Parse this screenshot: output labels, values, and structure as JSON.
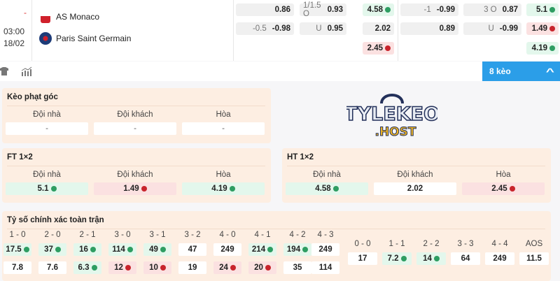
{
  "match": {
    "status": "-",
    "time": "03:00",
    "date": "18/02",
    "home": "AS Monaco",
    "away": "Paris Saint Germain"
  },
  "odds": {
    "colA": [
      {
        "label": "",
        "value": "0.86"
      },
      {
        "label": "-0.5",
        "value": "-0.98"
      }
    ],
    "colB": [
      {
        "label": "1/1.5 O",
        "value": "0.93"
      },
      {
        "label": "U",
        "value": "0.95"
      }
    ],
    "colC": [
      {
        "value": "4.58",
        "trend": "up"
      },
      {
        "value": "2.02",
        "trend": null
      },
      {
        "value": "2.45",
        "trend": "down"
      }
    ],
    "colD": [
      {
        "label": "-1",
        "value": "-0.99"
      },
      {
        "label": "",
        "value": "0.89"
      }
    ],
    "colE": [
      {
        "label": "3 O",
        "value": "0.87"
      },
      {
        "label": "U",
        "value": "-0.99"
      }
    ],
    "colF": [
      {
        "value": "5.1",
        "trend": "up"
      },
      {
        "value": "1.49",
        "trend": "down"
      },
      {
        "value": "4.19",
        "trend": "up"
      }
    ]
  },
  "toolbar": {
    "shirt_icon": "shirt-icon",
    "stats_icon": "bar-chart-icon",
    "more_label": "8 kèo",
    "chevron": "^"
  },
  "watermark": "TYLEKEO.HOST",
  "colors": {
    "accent": "#2b9ee8",
    "up": "#2e9d62",
    "down": "#c8242c",
    "card": "#fdeee2"
  },
  "corner": {
    "title": "Kèo phạt góc",
    "headers": [
      "Đội nhà",
      "Đội khách",
      "Hòa"
    ],
    "values": [
      {
        "value": "-",
        "trend": null
      },
      {
        "value": "-",
        "trend": null
      },
      {
        "value": "-",
        "trend": null
      }
    ]
  },
  "ft": {
    "title": "FT 1×2",
    "headers": [
      "Đội nhà",
      "Đội khách",
      "Hòa"
    ],
    "values": [
      {
        "value": "5.1",
        "trend": "up"
      },
      {
        "value": "1.49",
        "trend": "down"
      },
      {
        "value": "4.19",
        "trend": "up"
      }
    ]
  },
  "ht": {
    "title": "HT 1×2",
    "headers": [
      "Đội nhà",
      "Đội khách",
      "Hòa"
    ],
    "values": [
      {
        "value": "4.58",
        "trend": "up"
      },
      {
        "value": "2.02",
        "trend": null
      },
      {
        "value": "2.45",
        "trend": "down"
      }
    ]
  },
  "correct_score": {
    "title": "Tỷ số chính xác toàn trận",
    "home_wins": [
      {
        "score": "1 - 0",
        "home": {
          "value": "17.5",
          "trend": "up"
        },
        "away": {
          "value": "7.8",
          "trend": null
        }
      },
      {
        "score": "2 - 0",
        "home": {
          "value": "37",
          "trend": "up"
        },
        "away": {
          "value": "7.6",
          "trend": null
        }
      },
      {
        "score": "2 - 1",
        "home": {
          "value": "16",
          "trend": "up"
        },
        "away": {
          "value": "6.3",
          "trend": "up"
        }
      },
      {
        "score": "3 - 0",
        "home": {
          "value": "114",
          "trend": "up"
        },
        "away": {
          "value": "12",
          "trend": "down"
        }
      },
      {
        "score": "3 - 1",
        "home": {
          "value": "49",
          "trend": "up"
        },
        "away": {
          "value": "10",
          "trend": "down"
        }
      },
      {
        "score": "3 - 2",
        "home": {
          "value": "47",
          "trend": null
        },
        "away": {
          "value": "19",
          "trend": null
        }
      },
      {
        "score": "4 - 0",
        "home": {
          "value": "249",
          "trend": null
        },
        "away": {
          "value": "24",
          "trend": "down"
        }
      },
      {
        "score": "4 - 1",
        "home": {
          "value": "214",
          "trend": "up"
        },
        "away": {
          "value": "20",
          "trend": "down"
        }
      },
      {
        "score": "4 - 2",
        "home": {
          "value": "194",
          "trend": "up"
        },
        "away": {
          "value": "35",
          "trend": null
        }
      },
      {
        "score": "4 - 3",
        "home": {
          "value": "249",
          "trend": null
        },
        "away": {
          "value": "114",
          "trend": null
        }
      }
    ],
    "draws": [
      {
        "score": "0 - 0",
        "value": "17",
        "trend": null
      },
      {
        "score": "1 - 1",
        "value": "7.2",
        "trend": "up"
      },
      {
        "score": "2 - 2",
        "value": "14",
        "trend": "up"
      },
      {
        "score": "3 - 3",
        "value": "64",
        "trend": null
      },
      {
        "score": "4 - 4",
        "value": "249",
        "trend": null
      },
      {
        "score": "AOS",
        "value": "11.5",
        "trend": null
      }
    ]
  }
}
